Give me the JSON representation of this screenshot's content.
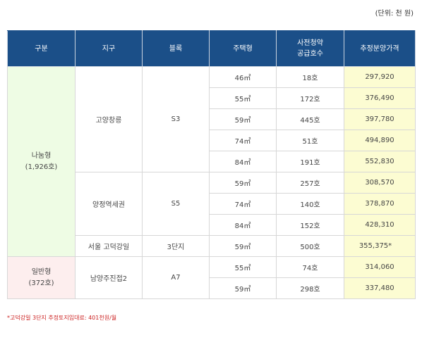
{
  "unit_note": "(단위: 천 원)",
  "headers": {
    "category": "구분",
    "district": "지구",
    "block": "블록",
    "type": "주택형",
    "units_line1": "사전청약",
    "units_line2": "공급호수",
    "price": "추정분양가격"
  },
  "groups": {
    "nanum": {
      "label": "나눔형",
      "total": "(1,926호)"
    },
    "ilban": {
      "label": "일반형",
      "total": "(372호)"
    }
  },
  "districts": [
    {
      "name": "고양창릉",
      "block": "S3"
    },
    {
      "name": "양정역세권",
      "block": "S5"
    },
    {
      "name": "서울 고덕강일",
      "block": "3단지"
    },
    {
      "name": "남양주진접2",
      "block": "A7"
    }
  ],
  "rows": [
    {
      "type": "46㎡",
      "units": "18호",
      "price": "297,920"
    },
    {
      "type": "55㎡",
      "units": "172호",
      "price": "376,490"
    },
    {
      "type": "59㎡",
      "units": "445호",
      "price": "397,780"
    },
    {
      "type": "74㎡",
      "units": "51호",
      "price": "494,890"
    },
    {
      "type": "84㎡",
      "units": "191호",
      "price": "552,830"
    },
    {
      "type": "59㎡",
      "units": "257호",
      "price": "308,570"
    },
    {
      "type": "74㎡",
      "units": "140호",
      "price": "378,870"
    },
    {
      "type": "84㎡",
      "units": "152호",
      "price": "428,310"
    },
    {
      "type": "59㎡",
      "units": "500호",
      "price": "355,375*"
    },
    {
      "type": "55㎡",
      "units": "74호",
      "price": "314,060"
    },
    {
      "type": "59㎡",
      "units": "298호",
      "price": "337,480"
    }
  ],
  "footnote": "*고덕강일 3단지 추정토지임대료: 401천원/월",
  "colors": {
    "header_bg": "#1b4f88",
    "nanum_bg": "#eefce4",
    "ilban_bg": "#fdeeee",
    "price_bg": "#fcfcd2",
    "footnote": "#cc2222"
  }
}
